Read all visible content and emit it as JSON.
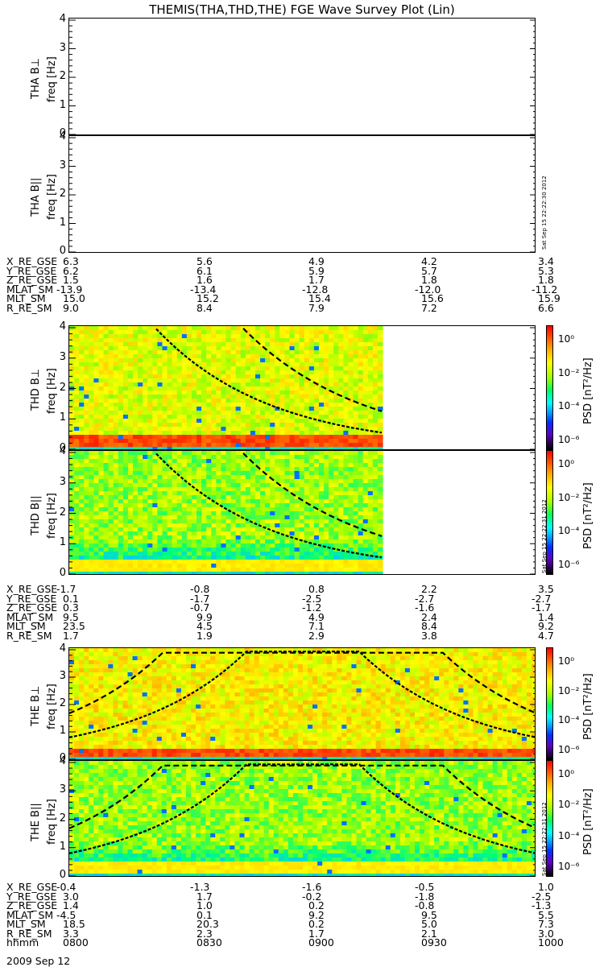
{
  "title": "THEMIS(THA,THD,THE) FGE Wave Survey Plot (Lin)",
  "stamp": "Sat Sep 15 22:22:30 2012",
  "stamp2": "Sat Sep 15 22:22:31 2012",
  "colorbar": {
    "title": "PSD [nT²/Hz]",
    "labels": [
      "10⁰",
      "10⁻²",
      "10⁻⁴",
      "10⁻⁶"
    ],
    "colors": [
      "#ff0000",
      "#ffff00",
      "#00ff60",
      "#0030ff",
      "#000000"
    ]
  },
  "chart_data": [
    {
      "type": "heatmap",
      "ylabel": "THA B⊥",
      "yunit": "freq [Hz]",
      "ylim": [
        0,
        4
      ],
      "yticks": [
        "4",
        "3",
        "2",
        "1",
        "0"
      ],
      "has_data": false
    },
    {
      "type": "heatmap",
      "ylabel": "THA B||",
      "yunit": "freq [Hz]",
      "ylim": [
        0,
        4
      ],
      "yticks": [
        "4",
        "3",
        "2",
        "1",
        "0"
      ],
      "has_data": false
    },
    {
      "type": "heatmap",
      "ylabel": "THD B⊥",
      "yunit": "freq [Hz]",
      "ylim": [
        0,
        4
      ],
      "yticks": [
        "4",
        "3",
        "2",
        "1",
        "0"
      ],
      "has_data": true,
      "data_end_fraction": 0.67,
      "low_band_hz": [
        0.1,
        0.5
      ]
    },
    {
      "type": "heatmap",
      "ylabel": "THD B||",
      "yunit": "freq [Hz]",
      "ylim": [
        0,
        4
      ],
      "yticks": [
        "4",
        "3",
        "2",
        "1",
        "0"
      ],
      "has_data": true,
      "data_end_fraction": 0.67,
      "low_band_hz": [
        0.1,
        0.5
      ]
    },
    {
      "type": "heatmap",
      "ylabel": "THE B⊥",
      "yunit": "freq [Hz]",
      "ylim": [
        0,
        4
      ],
      "yticks": [
        "4",
        "3",
        "2",
        "1",
        "0"
      ],
      "has_data": true,
      "data_end_fraction": 1.0,
      "low_band_hz": [
        0.1,
        0.5
      ]
    },
    {
      "type": "heatmap",
      "ylabel": "THE B||",
      "yunit": "freq [Hz]",
      "ylim": [
        0,
        4
      ],
      "yticks": [
        "4",
        "3",
        "2",
        "1",
        "0"
      ],
      "has_data": true,
      "data_end_fraction": 1.0,
      "low_band_hz": [
        0.1,
        0.5
      ]
    }
  ],
  "ephemeris": [
    {
      "rows": [
        {
          "label": "X_RE_GSE",
          "values": [
            "6.3",
            "5.6",
            "4.9",
            "4.2",
            "3.4"
          ]
        },
        {
          "label": "Y_RE_GSE",
          "values": [
            "6.2",
            "6.1",
            "5.9",
            "5.7",
            "5.3"
          ]
        },
        {
          "label": "Z_RE_GSE",
          "values": [
            "1.5",
            "1.6",
            "1.7",
            "1.8",
            "1.8"
          ]
        },
        {
          "label": "MLAT_SM",
          "values": [
            "-13.9",
            "-13.4",
            "-12.8",
            "-12.0",
            "-11.2"
          ]
        },
        {
          "label": "MLT_SM",
          "values": [
            "15.0",
            "15.2",
            "15.4",
            "15.6",
            "15.9"
          ]
        },
        {
          "label": "R_RE_SM",
          "values": [
            "9.0",
            "8.4",
            "7.9",
            "7.2",
            "6.6"
          ]
        }
      ]
    },
    {
      "rows": [
        {
          "label": "X_RE_GSE",
          "values": [
            "-1.7",
            "-0.8",
            "0.8",
            "2.2",
            "3.5"
          ]
        },
        {
          "label": "Y_RE_GSE",
          "values": [
            "0.1",
            "-1.7",
            "-2.5",
            "-2.7",
            "-2.7"
          ]
        },
        {
          "label": "Z_RE_GSE",
          "values": [
            "0.3",
            "-0.7",
            "-1.2",
            "-1.6",
            "-1.7"
          ]
        },
        {
          "label": "MLAT_SM",
          "values": [
            "9.5",
            "9.9",
            "4.9",
            "2.4",
            "1.4"
          ]
        },
        {
          "label": "MLT_SM",
          "values": [
            "23.5",
            "4.5",
            "7.1",
            "8.4",
            "9.2"
          ]
        },
        {
          "label": "R_RE_SM",
          "values": [
            "1.7",
            "1.9",
            "2.9",
            "3.8",
            "4.7"
          ]
        }
      ]
    },
    {
      "rows": [
        {
          "label": "X_RE_GSE",
          "values": [
            "-0.4",
            "-1.3",
            "-1.6",
            "-0.5",
            "1.0"
          ]
        },
        {
          "label": "Y_RE_GSE",
          "values": [
            "3.0",
            "1.7",
            "-0.2",
            "-1.8",
            "-2.5"
          ]
        },
        {
          "label": "Z_RE_GSE",
          "values": [
            "1.4",
            "1.0",
            "0.2",
            "-0.8",
            "-1.3"
          ]
        },
        {
          "label": "MLAT_SM",
          "values": [
            "-4.5",
            "0.1",
            "9.2",
            "9.5",
            "5.5"
          ]
        },
        {
          "label": "MLT_SM",
          "values": [
            "18.5",
            "20.3",
            "0.2",
            "5.0",
            "7.3"
          ]
        },
        {
          "label": "R_RE_SM",
          "values": [
            "3.3",
            "2.3",
            "1.7",
            "2.1",
            "3.0"
          ]
        },
        {
          "label": "hhmm",
          "values": [
            "0800",
            "0830",
            "0900",
            "0930",
            "1000"
          ]
        }
      ]
    }
  ],
  "date": "2009 Sep 12"
}
